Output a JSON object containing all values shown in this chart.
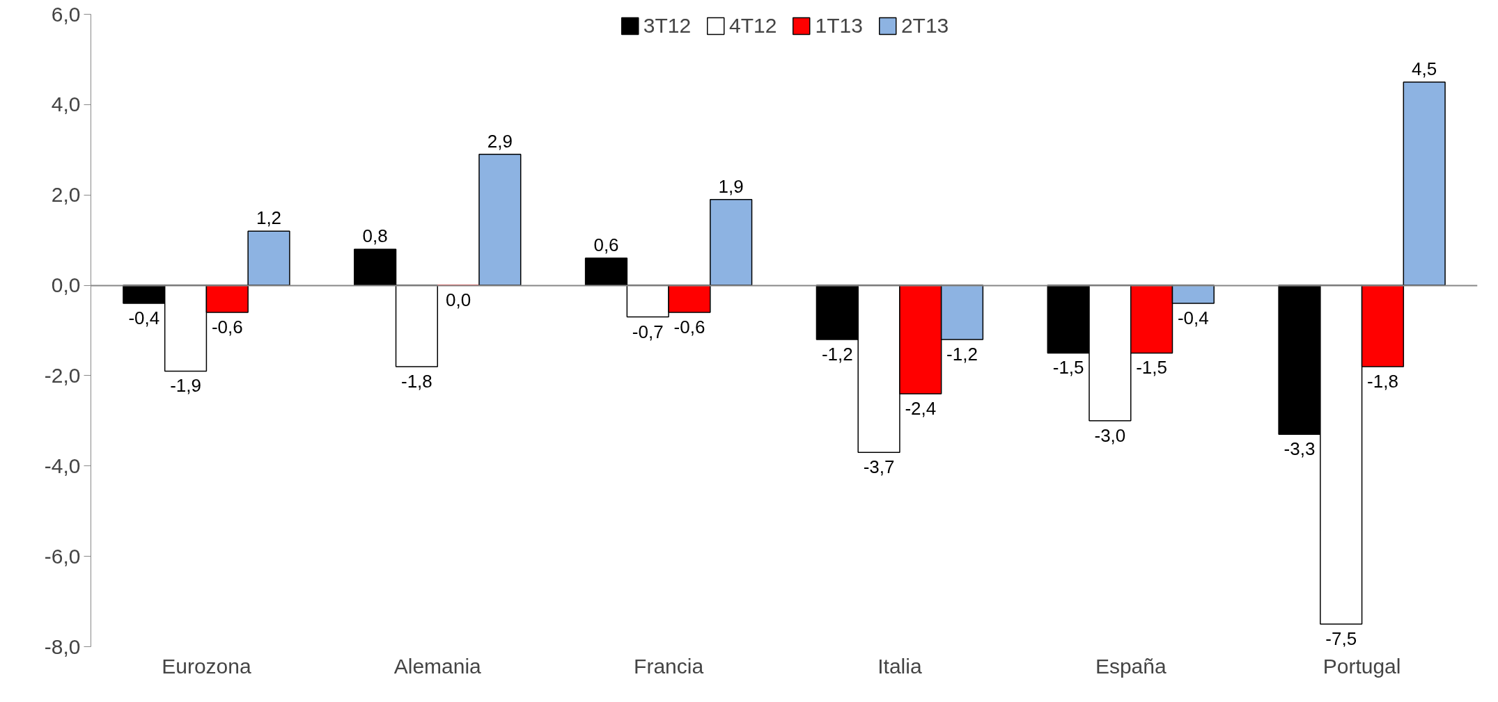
{
  "chart_data": {
    "type": "bar",
    "categories": [
      "Eurozona",
      "Alemania",
      "Francia",
      "Italia",
      "España",
      "Portugal"
    ],
    "series": [
      {
        "name": "3T12",
        "color": "#000000",
        "values": [
          -0.4,
          0.8,
          0.6,
          -1.2,
          -1.5,
          -3.3
        ],
        "value_labels": [
          "-0,4",
          "0,8",
          "0,6",
          "-1,2",
          "-1,5",
          "-3,3"
        ]
      },
      {
        "name": "4T12",
        "color": "#ffffff",
        "values": [
          -1.9,
          -1.8,
          -0.7,
          -3.7,
          -3.0,
          -7.5
        ],
        "value_labels": [
          "-1,9",
          "-1,8",
          "-0,7",
          "-3,7",
          "-3,0",
          "-7,5"
        ]
      },
      {
        "name": "1T13",
        "color": "#ff0000",
        "values": [
          -0.6,
          0.0,
          -0.6,
          -2.4,
          -1.5,
          -1.8
        ],
        "value_labels": [
          "-0,6",
          "0,0",
          "-0,6",
          "-2,4",
          "-1,5",
          "-1,8"
        ]
      },
      {
        "name": "2T13",
        "color": "#8db3e2",
        "values": [
          1.2,
          2.9,
          1.9,
          -1.2,
          -0.4,
          4.5
        ],
        "value_labels": [
          "1,2",
          "2,9",
          "1,9",
          "-1,2",
          "-0,4",
          "4,5"
        ]
      }
    ],
    "ylim": [
      -8,
      6
    ],
    "yticks": [
      {
        "value": -8,
        "label": "-8,0"
      },
      {
        "value": -6,
        "label": "-6,0"
      },
      {
        "value": -4,
        "label": "-4,0"
      },
      {
        "value": -2,
        "label": "-2,0"
      },
      {
        "value": 0,
        "label": "0,0"
      },
      {
        "value": 2,
        "label": "2,0"
      },
      {
        "value": 4,
        "label": "4,0"
      },
      {
        "value": 6,
        "label": "6,0"
      }
    ],
    "legend": "top"
  }
}
